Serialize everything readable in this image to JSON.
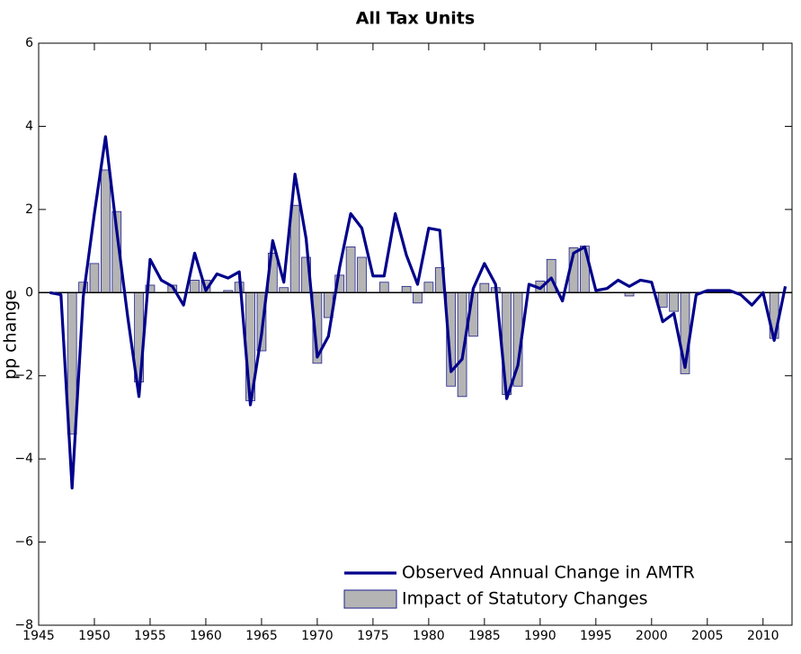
{
  "chart_data": {
    "type": "bar-line",
    "title": "All Tax Units",
    "y_label": "pp change",
    "x": [
      1946,
      1947,
      1948,
      1949,
      1950,
      1951,
      1952,
      1953,
      1954,
      1955,
      1956,
      1957,
      1958,
      1959,
      1960,
      1961,
      1962,
      1963,
      1964,
      1965,
      1966,
      1967,
      1968,
      1969,
      1970,
      1971,
      1972,
      1973,
      1974,
      1975,
      1976,
      1977,
      1978,
      1979,
      1980,
      1981,
      1982,
      1983,
      1984,
      1985,
      1986,
      1987,
      1988,
      1989,
      1990,
      1991,
      1992,
      1993,
      1994,
      1995,
      1996,
      1997,
      1998,
      1999,
      2000,
      2001,
      2002,
      2003,
      2004,
      2005,
      2006,
      2007,
      2008,
      2009,
      2010,
      2011,
      2012
    ],
    "series": [
      {
        "name": "Observed Annual Change in AMTR",
        "type": "line",
        "color": "#00008b",
        "values": [
          0,
          -0.05,
          -4.7,
          -0.1,
          1.9,
          3.75,
          1.5,
          -0.6,
          -2.5,
          0.8,
          0.3,
          0.15,
          -0.3,
          0.95,
          0.05,
          0.45,
          0.35,
          0.5,
          -2.7,
          -1.0,
          1.25,
          0.25,
          2.85,
          1.3,
          -1.55,
          -1.05,
          0.6,
          1.9,
          1.55,
          0.4,
          0.4,
          1.9,
          0.9,
          0.2,
          1.55,
          1.5,
          -1.9,
          -1.6,
          0.1,
          0.7,
          0.2,
          -2.55,
          -1.75,
          0.2,
          0.1,
          0.35,
          -0.2,
          0.95,
          1.1,
          0.05,
          0.1,
          0.3,
          0.15,
          0.3,
          0.25,
          -0.7,
          -0.5,
          -1.8,
          -0.05,
          0.05,
          0.05,
          0.05,
          -0.05,
          -0.3,
          0,
          -1.15,
          0.15
        ]
      },
      {
        "name": "Impact of Statutory Changes",
        "type": "bar",
        "color": "#b4b4b4",
        "edgecolor": "#1f1f8f",
        "values": [
          0,
          0,
          -3.4,
          0.25,
          0.7,
          2.95,
          1.95,
          0,
          -2.15,
          0.18,
          0,
          0.18,
          0,
          0.3,
          0.3,
          0,
          0.05,
          0.25,
          -2.6,
          -1.4,
          0.95,
          0.12,
          2.1,
          0.85,
          -1.7,
          -0.6,
          0.42,
          1.1,
          0.85,
          0,
          0.25,
          0,
          0.15,
          -0.25,
          0.25,
          0.6,
          -2.25,
          -2.5,
          -1.05,
          0.22,
          0.12,
          -2.45,
          -2.25,
          0,
          0.28,
          0.8,
          0,
          1.08,
          1.12,
          0,
          0,
          0,
          -0.08,
          0,
          0,
          -0.35,
          -0.45,
          -1.95,
          0,
          0.03,
          0,
          0,
          0,
          0,
          0,
          -1.1,
          0
        ]
      }
    ],
    "xlim": [
      1945,
      2012.6
    ],
    "xticks": [
      1945,
      1950,
      1955,
      1960,
      1965,
      1970,
      1975,
      1980,
      1985,
      1990,
      1995,
      2000,
      2005,
      2010
    ],
    "ylim": [
      -8,
      6
    ],
    "yticks": [
      {
        "value": -8,
        "label": "−8"
      },
      {
        "value": -6,
        "label": "−6"
      },
      {
        "value": -4,
        "label": "−4"
      },
      {
        "value": -2,
        "label": "−2"
      },
      0,
      2,
      4,
      6
    ],
    "legend": "lower right",
    "grid": false
  }
}
